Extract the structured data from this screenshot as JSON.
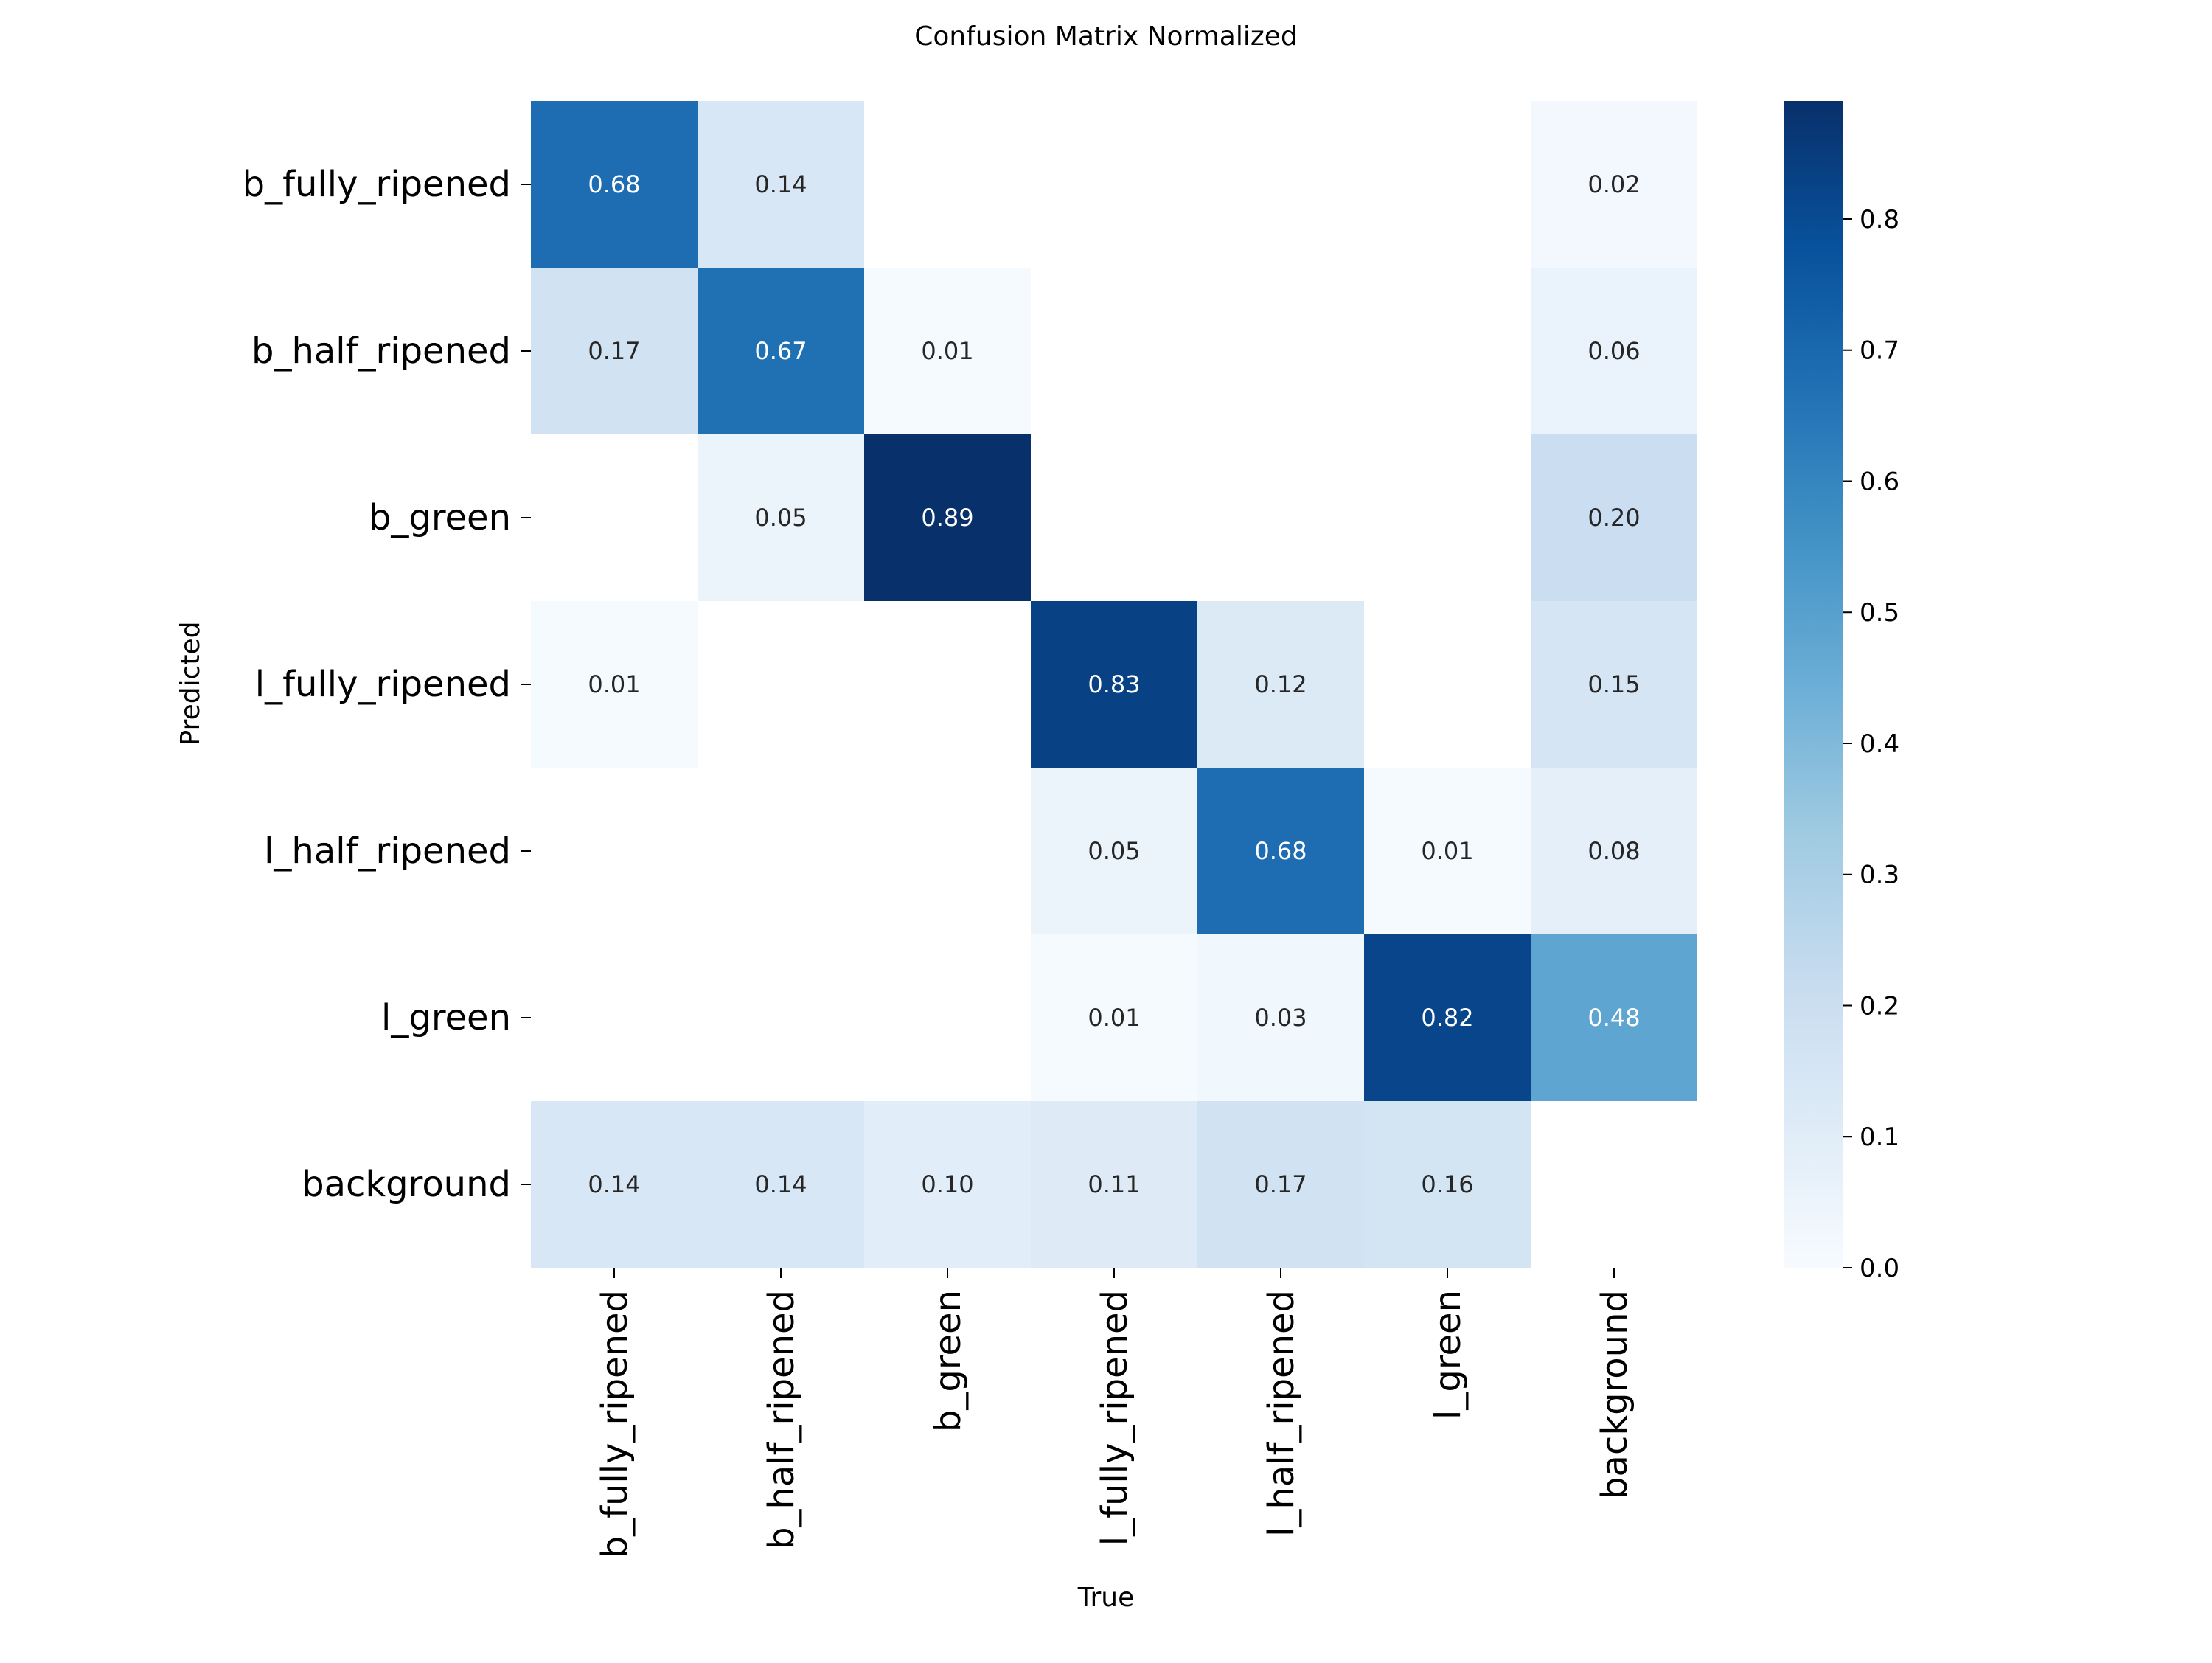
{
  "chart_data": {
    "type": "heatmap",
    "title": "Confusion Matrix Normalized",
    "xlabel": "True",
    "ylabel": "Predicted",
    "x_categories": [
      "b_fully_ripened",
      "b_half_ripened",
      "b_green",
      "l_fully_ripened",
      "l_half_ripened",
      "l_green",
      "background"
    ],
    "y_categories": [
      "b_fully_ripened",
      "b_half_ripened",
      "b_green",
      "l_fully_ripened",
      "l_half_ripened",
      "l_green",
      "background"
    ],
    "matrix": [
      [
        0.68,
        0.14,
        null,
        null,
        null,
        null,
        0.02
      ],
      [
        0.17,
        0.67,
        0.01,
        null,
        null,
        null,
        0.06
      ],
      [
        null,
        0.05,
        0.89,
        null,
        null,
        null,
        0.2
      ],
      [
        0.01,
        null,
        null,
        0.83,
        0.12,
        null,
        0.15
      ],
      [
        null,
        null,
        null,
        0.05,
        0.68,
        0.01,
        0.08
      ],
      [
        null,
        null,
        null,
        0.01,
        0.03,
        0.82,
        0.48
      ],
      [
        0.14,
        0.14,
        0.1,
        0.11,
        0.17,
        0.16,
        null
      ]
    ],
    "colorbar": {
      "colormap": "Blues",
      "range": [
        0,
        0.89
      ],
      "ticks": [
        "0.0",
        "0.1",
        "0.2",
        "0.3",
        "0.4",
        "0.5",
        "0.6",
        "0.7",
        "0.8"
      ]
    }
  }
}
